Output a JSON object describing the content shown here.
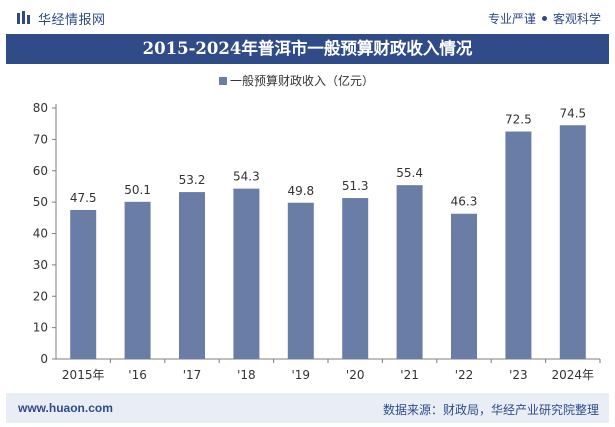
{
  "header": {
    "brand": "华经情报网",
    "tag1": "专业严谨",
    "tag2": "客观科学"
  },
  "title": "2015-2024年普洱市一般预算财政收入情况",
  "footer": {
    "website": "www.huaon.com",
    "source": "数据来源：财政局，华经产业研究院整理"
  },
  "colors": {
    "bar": "#6a7da6",
    "title_bg": "#2f4b88",
    "footer_bg": "#e8edf6"
  },
  "chart_data": {
    "type": "bar",
    "categories": [
      "2015年",
      "'16",
      "'17",
      "'18",
      "'19",
      "'20",
      "'21",
      "'22",
      "'23",
      "2024年"
    ],
    "series": [
      {
        "name": "一般预算财政收入（亿元）",
        "values": [
          47.5,
          50.1,
          53.2,
          54.3,
          49.8,
          51.3,
          55.4,
          46.3,
          72.5,
          74.5
        ],
        "labels": [
          "47.5",
          "50.1",
          "53.2",
          "54.3",
          "49.8",
          "51.3",
          "55.4",
          "46.3",
          "72.5",
          "74.5"
        ]
      }
    ],
    "ylim": [
      0,
      80
    ],
    "yticks": [
      0,
      10,
      20,
      30,
      40,
      50,
      60,
      70,
      80
    ],
    "legend": "top-center",
    "grid": false
  }
}
